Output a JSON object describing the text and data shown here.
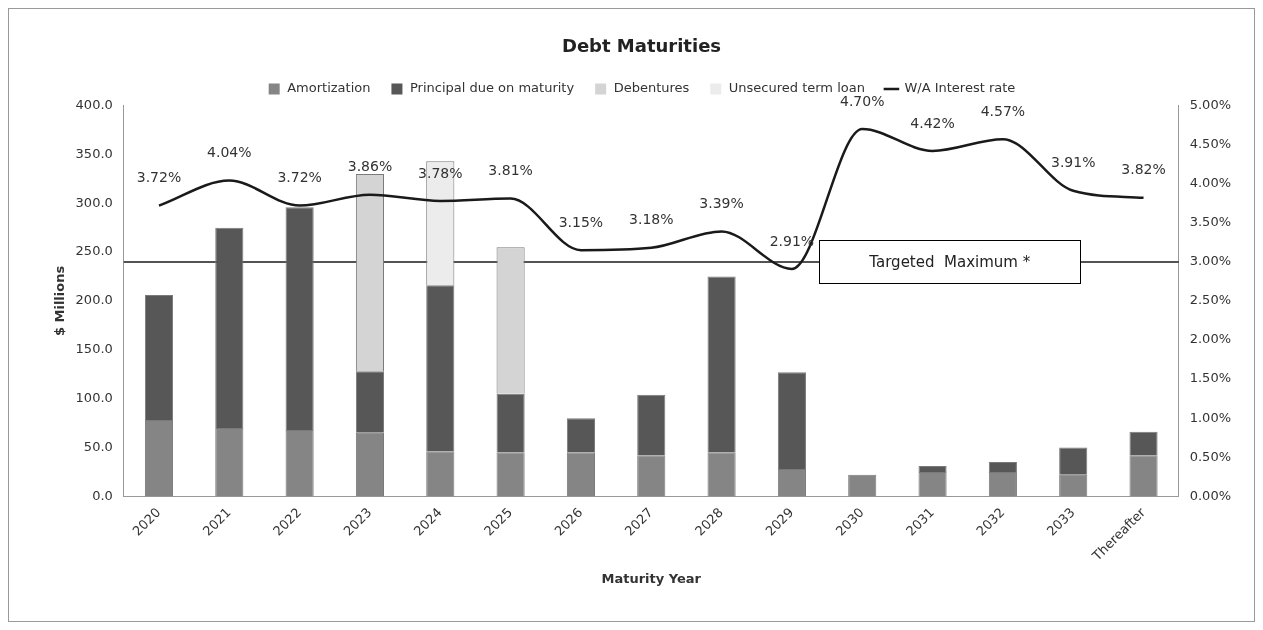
{
  "chart_data": {
    "type": "bar",
    "title": "Debt Maturities",
    "xlabel": "Maturity Year",
    "ylabel": "$ Millions",
    "stacked": true,
    "legend": "top",
    "grid": false,
    "marker": "none",
    "categories": [
      "2020",
      "2021",
      "2022",
      "2023",
      "2024",
      "2025",
      "2026",
      "2027",
      "2028",
      "2029",
      "2030",
      "2031",
      "2032",
      "2033",
      "Thereafter"
    ],
    "series": [
      {
        "name": "Amortization",
        "color": "#858585",
        "values": [
          78,
          70,
          68,
          65,
          46,
          45,
          45,
          42,
          45,
          28,
          22,
          25,
          25,
          22,
          42
        ]
      },
      {
        "name": "Principal due on maturity",
        "color": "#575757",
        "values": [
          128,
          205,
          228,
          63,
          170,
          60,
          35,
          62,
          180,
          99,
          null,
          6,
          10,
          28,
          24
        ]
      },
      {
        "name": "Debentures",
        "color": "#d4d4d4",
        "values": [
          null,
          null,
          null,
          202,
          null,
          150,
          null,
          null,
          null,
          null,
          null,
          null,
          null,
          null,
          null
        ]
      },
      {
        "name": "Unsecured term loan",
        "color": "#ececec",
        "values": [
          null,
          null,
          null,
          null,
          127,
          null,
          null,
          null,
          null,
          null,
          null,
          null,
          null,
          null,
          null
        ]
      },
      {
        "name": "W/A Interest rate",
        "type": "line",
        "axis": "y2",
        "color": "#1a1a1a",
        "values": [
          3.72,
          4.04,
          3.72,
          3.86,
          3.78,
          3.81,
          3.15,
          3.18,
          3.39,
          2.91,
          4.7,
          4.42,
          4.57,
          3.91,
          3.82
        ],
        "value_labels": [
          "3.72%",
          "4.04%",
          "3.72%",
          "3.86%",
          "3.78%",
          "3.81%",
          "3.15%",
          "3.18%",
          "3.39%",
          "2.91%",
          "4.70%",
          "4.42%",
          "4.57%",
          "3.91%",
          "3.82%"
        ]
      }
    ],
    "ylim": [
      0,
      400
    ],
    "yticks": [
      {
        "value": 0,
        "label": "0.0"
      },
      {
        "value": 50,
        "label": "50.0"
      },
      {
        "value": 100,
        "label": "100.0"
      },
      {
        "value": 150,
        "label": "150.0"
      },
      {
        "value": 200,
        "label": "200.0"
      },
      {
        "value": 250,
        "label": "250.0"
      },
      {
        "value": 300,
        "label": "300.0"
      },
      {
        "value": 350,
        "label": "350.0"
      },
      {
        "value": 400,
        "label": "400.0"
      }
    ],
    "y2lim": [
      0,
      5
    ],
    "y2ticks": [
      {
        "value": 0,
        "label": "0.00%"
      },
      {
        "value": 0.5,
        "label": "0.50%"
      },
      {
        "value": 1,
        "label": "1.00%"
      },
      {
        "value": 1.5,
        "label": "1.50%"
      },
      {
        "value": 2,
        "label": "2.00%"
      },
      {
        "value": 2.5,
        "label": "2.50%"
      },
      {
        "value": 3,
        "label": "3.00%"
      },
      {
        "value": 3.5,
        "label": "3.50%"
      },
      {
        "value": 4,
        "label": "4.00%"
      },
      {
        "value": 4.5,
        "label": "4.50%"
      },
      {
        "value": 5,
        "label": "5.00%"
      }
    ],
    "ref_lines": [
      {
        "axis": "y2",
        "value": 3,
        "label": "Targeted  Maximum *",
        "color": "#1a1a1a"
      }
    ]
  }
}
